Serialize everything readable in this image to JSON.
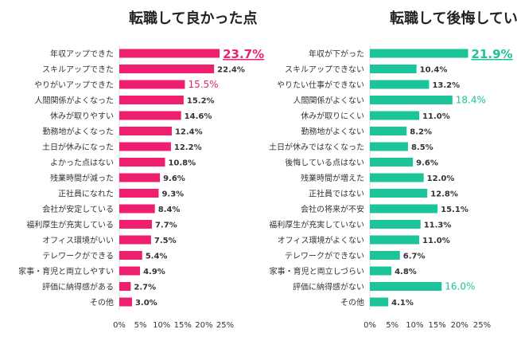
{
  "chart_data": [
    {
      "type": "bar",
      "orientation": "horizontal",
      "title": "転職して良かった点",
      "categories": [
        "年収アップできた",
        "スキルアップできた",
        "やりがいアップできた",
        "人間関係がよくなった",
        "休みが取りやすい",
        "勤務地がよくなった",
        "土日が休みになった",
        "よかった点はない",
        "残業時間が減った",
        "正社員になれた",
        "会社が安定している",
        "福利厚生が充実している",
        "オフィス環境がいい",
        "テレワークができる",
        "家事・育児と両立しやすい",
        "評価に納得感がある",
        "その他"
      ],
      "values": [
        23.7,
        22.4,
        15.5,
        15.2,
        14.6,
        12.4,
        12.2,
        10.8,
        9.6,
        9.3,
        8.4,
        7.7,
        7.5,
        5.4,
        4.9,
        2.7,
        3.0
      ],
      "labels": [
        "23.7%",
        "22.4%",
        "15.5%",
        "15.2%",
        "14.6%",
        "12.4%",
        "12.2%",
        "10.8%",
        "9.6%",
        "9.3%",
        "8.4%",
        "7.7%",
        "7.5%",
        "5.4%",
        "4.9%",
        "2.7%",
        "3.0%"
      ],
      "highlight": [
        0,
        2
      ],
      "xlim": [
        0,
        25
      ],
      "xticks": [
        0,
        5,
        10,
        15,
        20,
        25
      ],
      "xtick_labels": [
        "0%",
        "5%",
        "10%",
        "15%",
        "20%",
        "25%"
      ],
      "bar_color": "#ee1f6f",
      "highlight_color": "#ee1f6f",
      "text_color": "#333333"
    },
    {
      "type": "bar",
      "orientation": "horizontal",
      "title": "転職して後悔している点",
      "categories": [
        "年収が下がった",
        "スキルアップできない",
        "やりたい仕事ができない",
        "人間関係がよくない",
        "休みが取りにくい",
        "勤務地がよくない",
        "土日が休みではなくなった",
        "後悔している点はない",
        "残業時間が増えた",
        "正社員ではない",
        "会社の将来が不安",
        "福利厚生が充実していない",
        "オフィス環境がよくない",
        "テレワークができない",
        "家事・育児と両立しづらい",
        "評価に納得感がない",
        "その他"
      ],
      "values": [
        21.9,
        10.4,
        13.2,
        18.4,
        11.0,
        8.2,
        8.5,
        9.6,
        12.0,
        12.8,
        15.1,
        11.3,
        11.0,
        6.7,
        4.8,
        16.0,
        4.1
      ],
      "labels": [
        "21.9%",
        "10.4%",
        "13.2%",
        "18.4%",
        "11.0%",
        "8.2%",
        "8.5%",
        "9.6%",
        "12.0%",
        "12.8%",
        "15.1%",
        "11.3%",
        "11.0%",
        "6.7%",
        "4.8%",
        "16.0%",
        "4.1%"
      ],
      "highlight": [
        0,
        3,
        15
      ],
      "xlim": [
        0,
        25
      ],
      "xticks": [
        0,
        5,
        10,
        15,
        20,
        25
      ],
      "xtick_labels": [
        "0%",
        "5%",
        "10%",
        "15%",
        "20%",
        "25%"
      ],
      "bar_color": "#1cc49a",
      "highlight_color": "#1cc49a",
      "text_color": "#333333"
    }
  ]
}
